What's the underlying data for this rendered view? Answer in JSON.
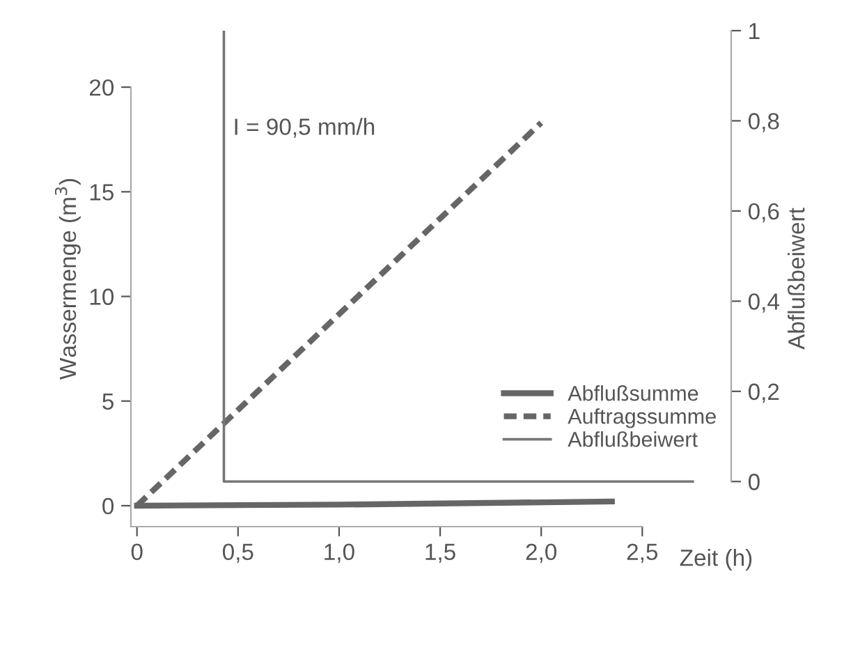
{
  "chart_data": {
    "type": "line",
    "xlabel": "Zeit (h)",
    "ylabel": "Wassermenge (m$^{3}$)",
    "y2label": "Abflußbeiwert",
    "annotations": [
      "I = 90,5 mm/h"
    ],
    "xlim": [
      -0.03,
      2.94
    ],
    "ylim": [
      -1,
      22.7
    ],
    "y2lim": [
      -0.1,
      1
    ],
    "xticks": [
      0,
      {
        "value": 0.5,
        "label": "0,5"
      },
      {
        "value": 1.0,
        "label": "1,0"
      },
      {
        "value": 1.5,
        "label": "1,5"
      },
      {
        "value": 2.0,
        "label": "2,0"
      },
      {
        "value": 2.5,
        "label": "2,5"
      }
    ],
    "yticks": [
      0,
      5,
      10,
      15,
      20
    ],
    "y2ticks": [
      0,
      {
        "value": 0.2,
        "label": "0,2"
      },
      {
        "value": 0.4,
        "label": "0,4"
      },
      {
        "value": 0.6,
        "label": "0,6"
      },
      {
        "value": 0.8,
        "label": "0,8"
      },
      1
    ],
    "legend": "bottom right",
    "grid": false,
    "marker": "none",
    "series": [
      {
        "name": "Abflußsumme",
        "color": "#666666",
        "line_style": "solid",
        "x": [
          0,
          1.0,
          2.35
        ],
        "values": [
          0,
          0.05,
          0.2
        ]
      },
      {
        "name": "Auftragssumme",
        "color": "#666666",
        "line_style": "dashed",
        "x": [
          0,
          2.0
        ],
        "values": [
          0,
          18.3
        ]
      },
      {
        "name": "Abflußbeiwert",
        "color": "#777777",
        "line_style": "solid",
        "axis": "y2",
        "x": [
          0.43,
          0.43,
          2.75
        ],
        "values": [
          1,
          0,
          0
        ]
      }
    ]
  }
}
